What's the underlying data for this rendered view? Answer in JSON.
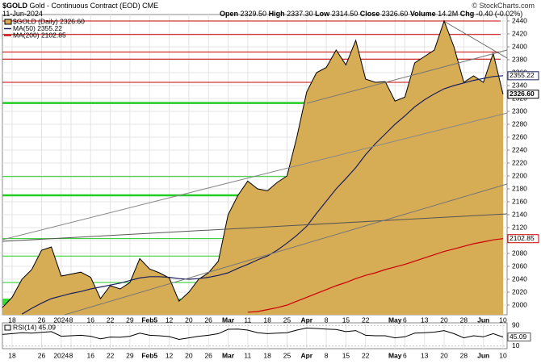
{
  "header": {
    "symbol": "$GOLD",
    "description": "Gold - Continuous Contract (EOD) CME",
    "date": "11-Jun-2024",
    "copyright": "© StockCharts.com",
    "quote": [
      {
        "label": "Open",
        "value": "2329.50"
      },
      {
        "label": "High",
        "value": "2337.30"
      },
      {
        "label": "Low",
        "value": "2314.50"
      },
      {
        "label": "Close",
        "value": "2326.60"
      },
      {
        "label": "Volume",
        "value": "14.2M"
      },
      {
        "label": "Chg",
        "value": "-0.40 (-0.02%)"
      }
    ]
  },
  "chart_data": {
    "type": "area",
    "categories": [
      null,
      "18",
      null,
      null,
      "26",
      null,
      "2024",
      "8",
      null,
      "16",
      null,
      "22",
      null,
      "29",
      null,
      "Feb5",
      null,
      "12",
      null,
      "20",
      null,
      "26",
      null,
      "Mar",
      null,
      "11",
      null,
      "18",
      null,
      "25",
      null,
      "Apr",
      null,
      "8",
      null,
      "15",
      null,
      "22",
      null,
      null,
      "May",
      "6",
      null,
      "13",
      null,
      "20",
      null,
      "28",
      null,
      "Jun",
      null,
      "10"
    ],
    "series": [
      {
        "name": "$GOLD (Daily) 2326.60",
        "color": "#d6ac55",
        "line_color": "#000000",
        "values": [
          1996,
          2012,
          2040,
          2055,
          2085,
          2090,
          2045,
          2048,
          2051,
          2043,
          2010,
          2030,
          2025,
          2035,
          2072,
          2056,
          2050,
          2042,
          2006,
          2020,
          2040,
          2050,
          2068,
          2140,
          2170,
          2192,
          2180,
          2177,
          2190,
          2200,
          2260,
          2330,
          2360,
          2368,
          2395,
          2372,
          2410,
          2350,
          2345,
          2346,
          2316,
          2322,
          2375,
          2385,
          2395,
          2440,
          2400,
          2345,
          2355,
          2345,
          2390,
          2326.6
        ],
        "value_labels": [
          null,
          null,
          null,
          null,
          null,
          null,
          null,
          null,
          null,
          null,
          null,
          null,
          null,
          null,
          null,
          null,
          null,
          null,
          null,
          null,
          null,
          null,
          null,
          null,
          null,
          null,
          null,
          null,
          null,
          null,
          null,
          null,
          null,
          null,
          null,
          null,
          null,
          null,
          null,
          null,
          null,
          null,
          null,
          null,
          null,
          null,
          null,
          null,
          null,
          null,
          null,
          "2326.60"
        ]
      },
      {
        "name": "MA(50) 2355.22",
        "color": "#1a1f5e",
        "values": [
          null,
          null,
          1986,
          1995,
          2003,
          2010,
          2014,
          2018,
          2021,
          2025,
          2028,
          2031,
          2034,
          2038,
          2042,
          2044,
          2044,
          2043,
          2041,
          2040,
          2041,
          2043,
          2046,
          2050,
          2057,
          2063,
          2070,
          2076,
          2085,
          2096,
          2108,
          2122,
          2142,
          2161,
          2180,
          2196,
          2213,
          2233,
          2250,
          2265,
          2280,
          2293,
          2307,
          2318,
          2327,
          2335,
          2340,
          2344,
          2348,
          2351,
          2354,
          2355.22
        ]
      },
      {
        "name": "MA(200) 2102.85",
        "color": "#cc0000",
        "values": [
          null,
          null,
          null,
          null,
          null,
          null,
          null,
          null,
          null,
          null,
          null,
          null,
          null,
          null,
          null,
          null,
          null,
          null,
          null,
          null,
          null,
          null,
          null,
          null,
          null,
          1989,
          1990,
          1993,
          1996,
          2000,
          2006,
          2012,
          2018,
          2024,
          2030,
          2035,
          2041,
          2046,
          2050,
          2055,
          2059,
          2063,
          2068,
          2073,
          2078,
          2083,
          2087,
          2091,
          2095,
          2098,
          2101,
          2102.85
        ]
      }
    ],
    "ylim": [
      1985,
      2450
    ],
    "yticks": [
      2000,
      2020,
      2040,
      2060,
      2080,
      2100,
      2120,
      2140,
      2160,
      2180,
      2200,
      2220,
      2240,
      2260,
      2280,
      2300,
      2320,
      2340,
      2360,
      2380,
      2400,
      2420,
      2440
    ],
    "grid": true,
    "levels": [
      {
        "value": 2440,
        "color": "#cc0000",
        "width": 1
      },
      {
        "value": 2419,
        "color": "#cc0000",
        "width": 1
      },
      {
        "value": 2392,
        "color": "#cc0000",
        "width": 1
      },
      {
        "value": 2381,
        "color": "#cc0000",
        "width": 1
      },
      {
        "value": 2345,
        "color": "#cc0000",
        "width": 1
      },
      {
        "value": 2313,
        "color": "#22cc22",
        "width": 2.5
      },
      {
        "value": 2199,
        "color": "#22cc22",
        "width": 1
      },
      {
        "value": 2170,
        "color": "#22cc22",
        "width": 2.5
      },
      {
        "value": 2103,
        "color": "#22cc22",
        "width": 1
      },
      {
        "value": 2076,
        "color": "#22cc22",
        "width": 1
      },
      {
        "value": 2035,
        "color": "#22cc22",
        "width": 1
      },
      {
        "value": 2005,
        "color": "#33dd33",
        "width": 8
      }
    ],
    "rsi": {
      "name": "RSI(14) 45.09",
      "color": "#000000",
      "ylim": [
        0,
        100
      ],
      "yticks": [
        90,
        10
      ],
      "values": [
        55,
        58,
        62,
        60,
        63,
        66,
        48,
        50,
        52,
        48,
        38,
        45,
        44,
        48,
        60,
        52,
        50,
        47,
        36,
        42,
        48,
        52,
        58,
        75,
        76,
        72,
        62,
        58,
        60,
        62,
        72,
        80,
        78,
        76,
        74,
        66,
        70,
        52,
        50,
        50,
        42,
        46,
        60,
        62,
        64,
        70,
        58,
        42,
        50,
        46,
        58,
        45.09
      ]
    }
  }
}
